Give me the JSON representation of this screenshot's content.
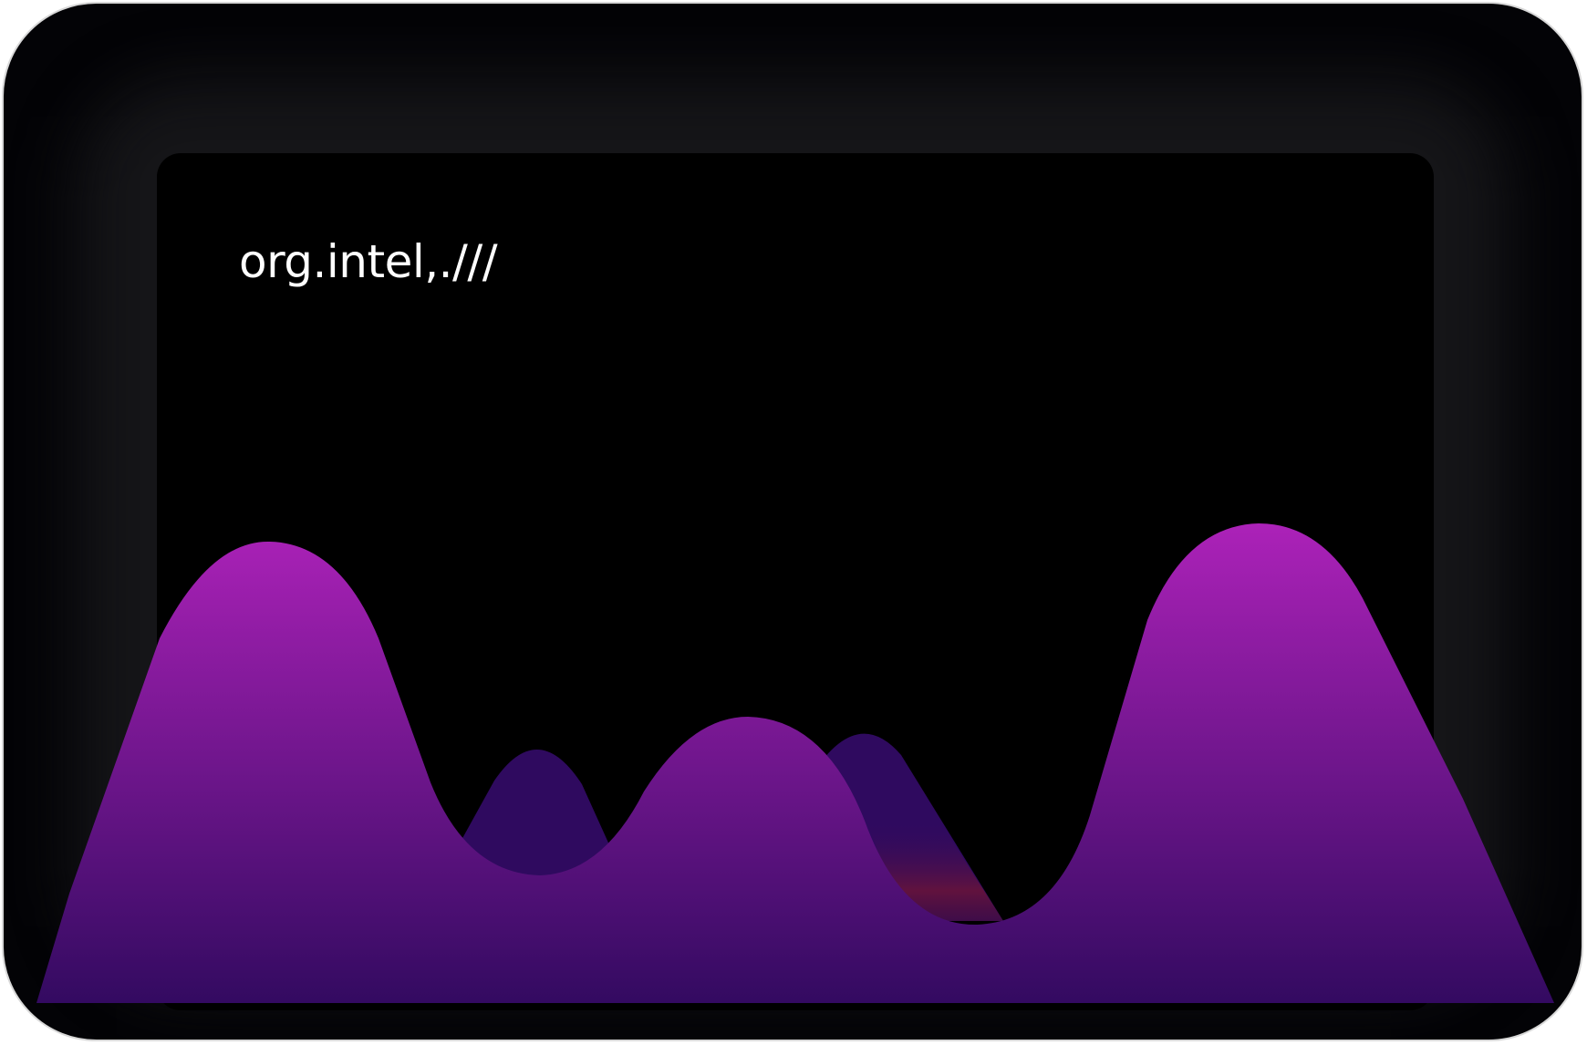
{
  "brand": {
    "text": "org.intel,.///"
  },
  "colors": {
    "frame": "#030306",
    "screen": "#000000",
    "text": "#ffffff",
    "mountain_top": "#ad22b9",
    "mountain_bottom": "#320a60",
    "back_peaks": "#2f0a5f",
    "accent_red": "#5b1235"
  },
  "icons": [
    "mountain-range-illustration"
  ]
}
